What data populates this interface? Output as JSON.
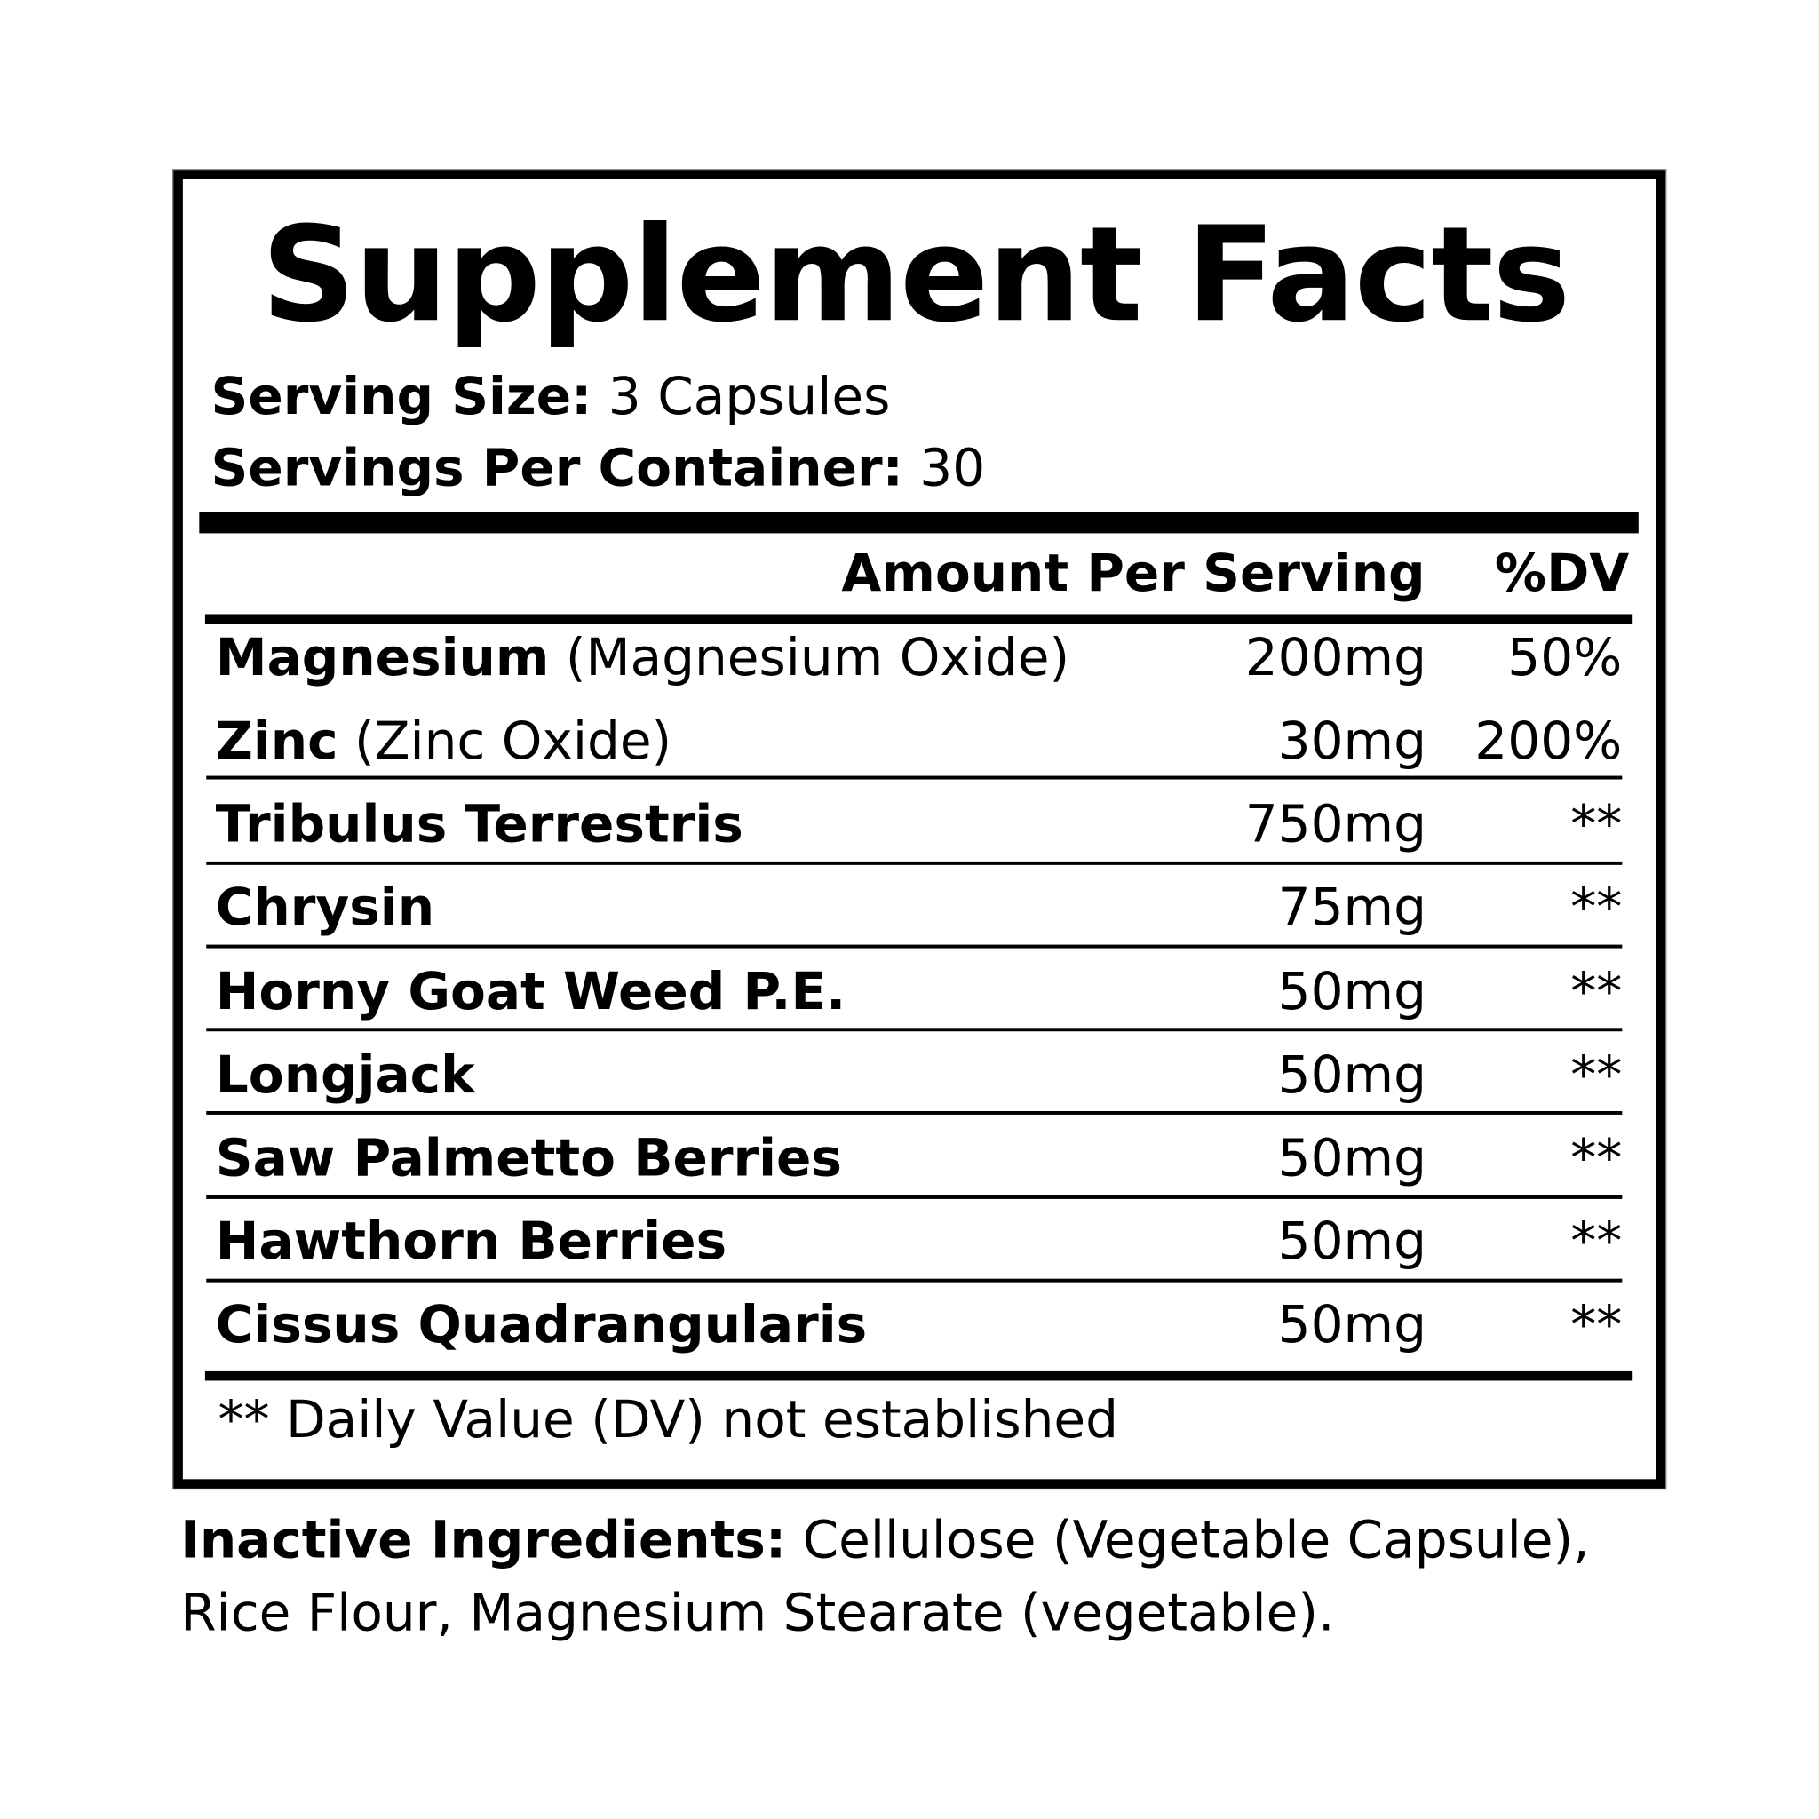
{
  "title": "Supplement Facts",
  "serving_size": {
    "label": "Serving Size:",
    "value": "3 Capsules"
  },
  "servings_per_container": {
    "label": "Servings Per Container:",
    "value": "30"
  },
  "table": {
    "headers": {
      "amount": "Amount Per Serving",
      "dv": "%DV"
    },
    "rows": [
      {
        "name": "Magnesium",
        "detail": "(Magnesium Oxide)",
        "amount": "200mg",
        "dv": "50%"
      },
      {
        "name": "Zinc",
        "detail": "(Zinc Oxide)",
        "amount": "30mg",
        "dv": "200%"
      },
      {
        "name": "Tribulus Terrestris",
        "detail": "",
        "amount": "750mg",
        "dv": "**"
      },
      {
        "name": "Chrysin",
        "detail": "",
        "amount": "75mg",
        "dv": "**"
      },
      {
        "name": "Horny Goat Weed P.E.",
        "detail": "",
        "amount": "50mg",
        "dv": "**"
      },
      {
        "name": "Longjack",
        "detail": "",
        "amount": "50mg",
        "dv": "**"
      },
      {
        "name": "Saw Palmetto Berries",
        "detail": "",
        "amount": "50mg",
        "dv": "**"
      },
      {
        "name": "Hawthorn Berries",
        "detail": "",
        "amount": "50mg",
        "dv": "**"
      },
      {
        "name": "Cissus Quadrangularis",
        "detail": "",
        "amount": "50mg",
        "dv": "**"
      }
    ]
  },
  "footnote": "** Daily Value (DV) not established",
  "inactive": {
    "label": "Inactive Ingredients:",
    "line1": "Cellulose (Vegetable Capsule),",
    "line2": "Rice Flour, Magnesium Stearate (vegetable)."
  }
}
